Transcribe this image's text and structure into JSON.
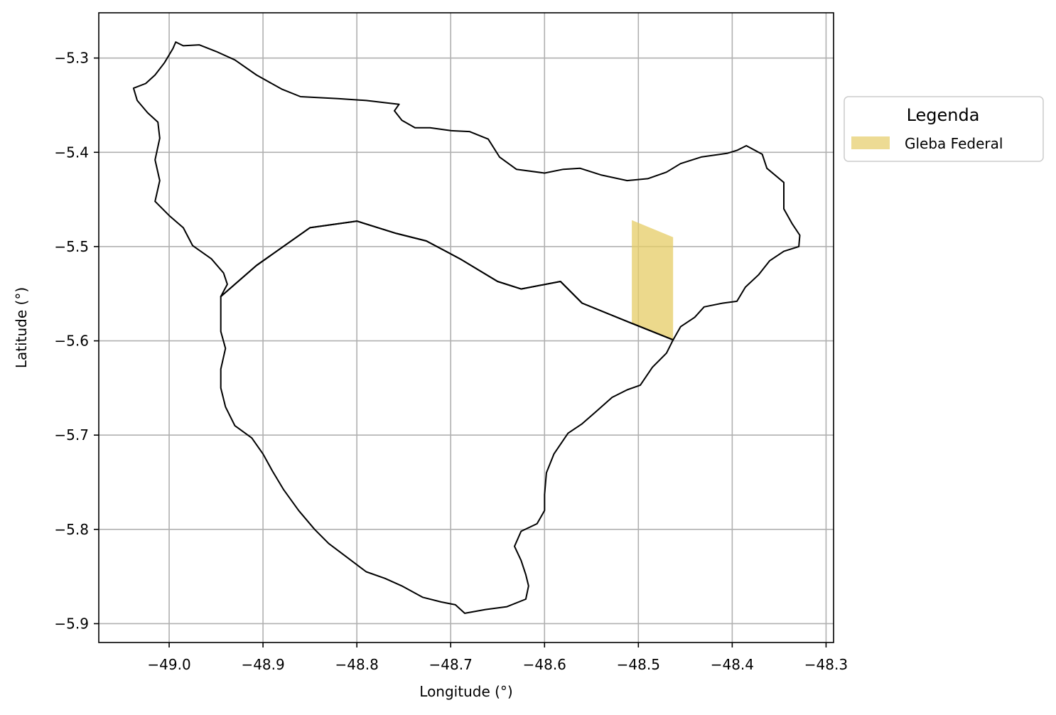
{
  "chart_data": {
    "type": "map",
    "xlabel": "Longitude (°)",
    "ylabel": "Latitude (°)",
    "xlim": [
      -49.075,
      -48.292
    ],
    "ylim": [
      -5.92,
      -5.252
    ],
    "grid": true,
    "xticks": [
      {
        "value": -49.0,
        "label": "−49.0"
      },
      {
        "value": -48.9,
        "label": "−48.9"
      },
      {
        "value": -48.8,
        "label": "−48.8"
      },
      {
        "value": -48.7,
        "label": "−48.7"
      },
      {
        "value": -48.6,
        "label": "−48.6"
      },
      {
        "value": -48.5,
        "label": "−48.5"
      },
      {
        "value": -48.4,
        "label": "−48.4"
      },
      {
        "value": -48.3,
        "label": "−48.3"
      }
    ],
    "yticks": [
      {
        "value": -5.3,
        "label": "−5.3"
      },
      {
        "value": -5.4,
        "label": "−5.4"
      },
      {
        "value": -5.5,
        "label": "−5.5"
      },
      {
        "value": -5.6,
        "label": "−5.6"
      },
      {
        "value": -5.7,
        "label": "−5.7"
      },
      {
        "value": -5.8,
        "label": "−5.8"
      },
      {
        "value": -5.9,
        "label": "−5.9"
      }
    ],
    "legend": {
      "title": "Legenda",
      "placement": "outside right, upper",
      "entries": [
        {
          "label": "Gleba Federal",
          "color": "#e6cc66"
        }
      ]
    },
    "boundary_color": "#000000",
    "polygons": {
      "northern_region": [
        [
          -49.038,
          -5.332
        ],
        [
          -49.025,
          -5.327
        ],
        [
          -49.015,
          -5.318
        ],
        [
          -49.005,
          -5.305
        ],
        [
          -48.996,
          -5.29
        ],
        [
          -48.993,
          -5.283
        ],
        [
          -48.985,
          -5.287
        ],
        [
          -48.968,
          -5.286
        ],
        [
          -48.95,
          -5.293
        ],
        [
          -48.93,
          -5.302
        ],
        [
          -48.907,
          -5.318
        ],
        [
          -48.88,
          -5.333
        ],
        [
          -48.86,
          -5.341
        ],
        [
          -48.82,
          -5.343
        ],
        [
          -48.79,
          -5.345
        ],
        [
          -48.765,
          -5.348
        ],
        [
          -48.755,
          -5.349
        ],
        [
          -48.76,
          -5.356
        ],
        [
          -48.752,
          -5.366
        ],
        [
          -48.738,
          -5.374
        ],
        [
          -48.722,
          -5.374
        ],
        [
          -48.7,
          -5.377
        ],
        [
          -48.68,
          -5.378
        ],
        [
          -48.66,
          -5.386
        ],
        [
          -48.648,
          -5.405
        ],
        [
          -48.63,
          -5.418
        ],
        [
          -48.6,
          -5.422
        ],
        [
          -48.58,
          -5.418
        ],
        [
          -48.562,
          -5.417
        ],
        [
          -48.54,
          -5.424
        ],
        [
          -48.512,
          -5.43
        ],
        [
          -48.49,
          -5.428
        ],
        [
          -48.47,
          -5.421
        ],
        [
          -48.455,
          -5.412
        ],
        [
          -48.433,
          -5.405
        ],
        [
          -48.405,
          -5.401
        ],
        [
          -48.395,
          -5.398
        ],
        [
          -48.385,
          -5.393
        ],
        [
          -48.368,
          -5.402
        ],
        [
          -48.363,
          -5.417
        ],
        [
          -48.345,
          -5.432
        ],
        [
          -48.345,
          -5.46
        ],
        [
          -48.336,
          -5.476
        ],
        [
          -48.328,
          -5.488
        ],
        [
          -48.329,
          -5.5
        ],
        [
          -48.345,
          -5.505
        ],
        [
          -48.36,
          -5.515
        ],
        [
          -48.372,
          -5.53
        ],
        [
          -48.386,
          -5.543
        ],
        [
          -48.395,
          -5.558
        ],
        [
          -48.41,
          -5.56
        ],
        [
          -48.43,
          -5.564
        ],
        [
          -48.44,
          -5.575
        ],
        [
          -48.455,
          -5.585
        ],
        [
          -48.463,
          -5.599
        ],
        [
          -48.508,
          -5.581
        ],
        [
          -48.56,
          -5.56
        ],
        [
          -48.583,
          -5.537
        ],
        [
          -48.625,
          -5.545
        ],
        [
          -48.65,
          -5.537
        ],
        [
          -48.69,
          -5.513
        ],
        [
          -48.726,
          -5.494
        ],
        [
          -48.758,
          -5.486
        ],
        [
          -48.8,
          -5.473
        ],
        [
          -48.85,
          -5.48
        ],
        [
          -48.907,
          -5.52
        ],
        [
          -48.945,
          -5.553
        ],
        [
          -48.938,
          -5.54
        ],
        [
          -48.942,
          -5.528
        ],
        [
          -48.955,
          -5.513
        ],
        [
          -48.975,
          -5.499
        ],
        [
          -48.985,
          -5.48
        ],
        [
          -49.0,
          -5.467
        ],
        [
          -49.015,
          -5.452
        ],
        [
          -49.01,
          -5.43
        ],
        [
          -49.015,
          -5.408
        ],
        [
          -49.01,
          -5.385
        ],
        [
          -49.012,
          -5.368
        ],
        [
          -49.023,
          -5.358
        ],
        [
          -49.034,
          -5.345
        ],
        [
          -49.038,
          -5.332
        ]
      ],
      "southern_region": [
        [
          -48.945,
          -5.553
        ],
        [
          -48.907,
          -5.52
        ],
        [
          -48.85,
          -5.48
        ],
        [
          -48.8,
          -5.473
        ],
        [
          -48.758,
          -5.486
        ],
        [
          -48.726,
          -5.494
        ],
        [
          -48.69,
          -5.513
        ],
        [
          -48.65,
          -5.537
        ],
        [
          -48.625,
          -5.545
        ],
        [
          -48.583,
          -5.537
        ],
        [
          -48.56,
          -5.56
        ],
        [
          -48.508,
          -5.581
        ],
        [
          -48.463,
          -5.599
        ],
        [
          -48.47,
          -5.613
        ],
        [
          -48.485,
          -5.628
        ],
        [
          -48.498,
          -5.647
        ],
        [
          -48.512,
          -5.652
        ],
        [
          -48.528,
          -5.66
        ],
        [
          -48.545,
          -5.675
        ],
        [
          -48.56,
          -5.688
        ],
        [
          -48.575,
          -5.698
        ],
        [
          -48.59,
          -5.72
        ],
        [
          -48.598,
          -5.74
        ],
        [
          -48.6,
          -5.763
        ],
        [
          -48.6,
          -5.78
        ],
        [
          -48.608,
          -5.794
        ],
        [
          -48.625,
          -5.802
        ],
        [
          -48.632,
          -5.818
        ],
        [
          -48.625,
          -5.833
        ],
        [
          -48.62,
          -5.848
        ],
        [
          -48.617,
          -5.86
        ],
        [
          -48.62,
          -5.874
        ],
        [
          -48.64,
          -5.882
        ],
        [
          -48.663,
          -5.885
        ],
        [
          -48.685,
          -5.889
        ],
        [
          -48.695,
          -5.88
        ],
        [
          -48.71,
          -5.877
        ],
        [
          -48.73,
          -5.872
        ],
        [
          -48.752,
          -5.86
        ],
        [
          -48.77,
          -5.852
        ],
        [
          -48.79,
          -5.845
        ],
        [
          -48.81,
          -5.83
        ],
        [
          -48.83,
          -5.815
        ],
        [
          -48.845,
          -5.8
        ],
        [
          -48.862,
          -5.78
        ],
        [
          -48.878,
          -5.758
        ],
        [
          -48.89,
          -5.738
        ],
        [
          -48.9,
          -5.72
        ],
        [
          -48.912,
          -5.703
        ],
        [
          -48.93,
          -5.69
        ],
        [
          -48.94,
          -5.67
        ],
        [
          -48.945,
          -5.65
        ],
        [
          -48.945,
          -5.63
        ],
        [
          -48.94,
          -5.608
        ],
        [
          -48.945,
          -5.59
        ],
        [
          -48.945,
          -5.57
        ],
        [
          -48.945,
          -5.553
        ]
      ],
      "gleba_federal": [
        [
          -48.507,
          -5.472
        ],
        [
          -48.463,
          -5.49
        ],
        [
          -48.463,
          -5.599
        ],
        [
          -48.507,
          -5.581
        ]
      ]
    }
  }
}
